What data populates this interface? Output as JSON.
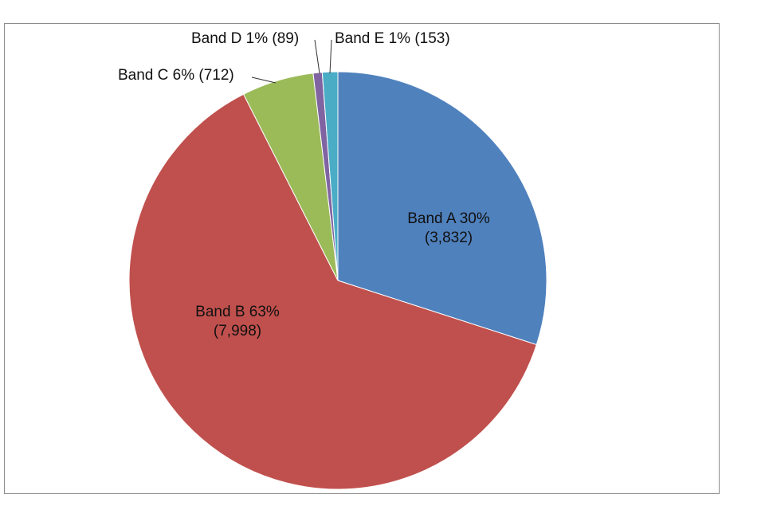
{
  "chart_data": {
    "type": "pie",
    "title": "",
    "legend": "none",
    "start_angle_deg": 0,
    "direction": "clockwise",
    "slices": [
      {
        "name": "Band A",
        "value": 3832,
        "pct_label": "30%",
        "value_label": "(3,832)",
        "color": "#4f81bd"
      },
      {
        "name": "Band B",
        "value": 7998,
        "pct_label": "63%",
        "value_label": "(7,998)",
        "color": "#c0504d"
      },
      {
        "name": "Band C",
        "value": 712,
        "pct_label": "6%",
        "value_label": "(712)",
        "color": "#9bbb59"
      },
      {
        "name": "Band D",
        "value": 89,
        "pct_label": "1%",
        "value_label": "(89)",
        "color": "#8064a2"
      },
      {
        "name": "Band E",
        "value": 153,
        "pct_label": "1%",
        "value_label": "(153)",
        "color": "#4bacc6"
      }
    ]
  }
}
